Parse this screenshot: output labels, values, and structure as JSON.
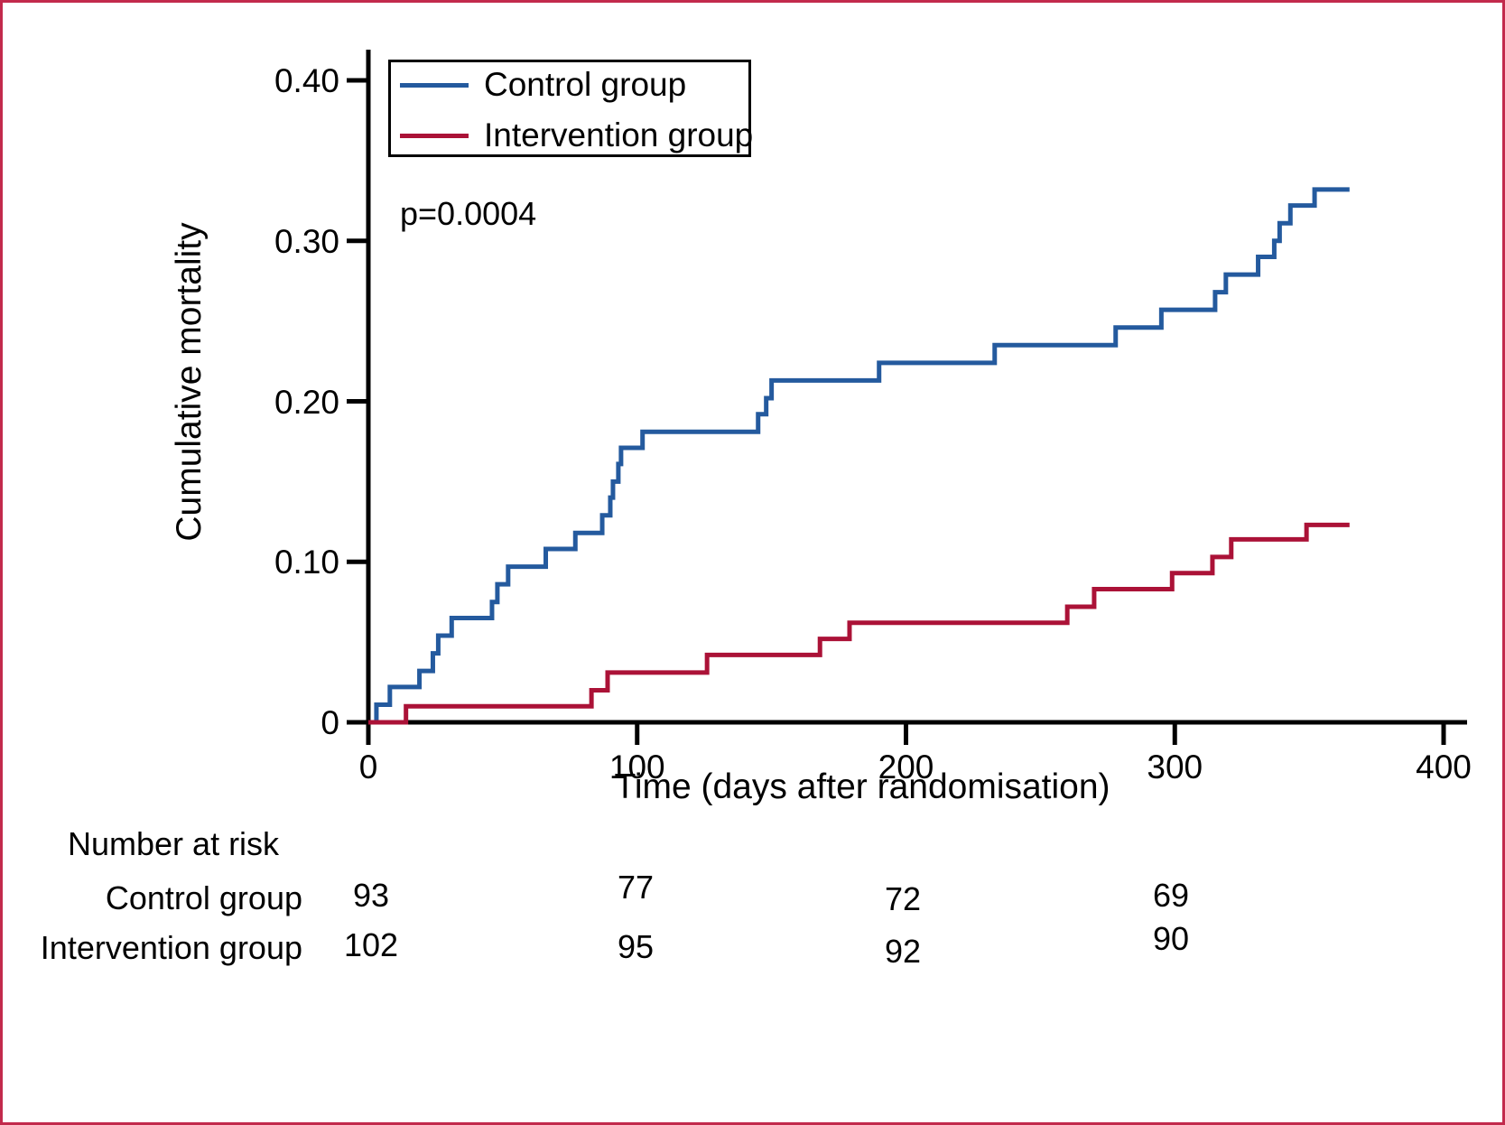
{
  "chart_data": {
    "type": "line",
    "subtype": "kaplan-meier-step-curves",
    "title": "",
    "xlabel": "Time (days after randomisation)",
    "ylabel": "Cumulative mortality",
    "annotation": "p=0.0004",
    "xlim": [
      0,
      408
    ],
    "ylim": [
      0,
      0.42
    ],
    "grid": false,
    "legend_position": "top-left-inside-box",
    "x_ticks": [
      0,
      100,
      200,
      300,
      400
    ],
    "x_tick_labels": [
      "0",
      "100",
      "200",
      "300",
      "400"
    ],
    "y_ticks": [
      0,
      0.1,
      0.2,
      0.3,
      0.4
    ],
    "y_tick_labels": [
      "0",
      "0.10",
      "0.20",
      "0.30",
      "0.40"
    ],
    "axis_color": "#000000",
    "series": [
      {
        "name": "Control group",
        "color": "#245a9e",
        "end_day": 365,
        "points": [
          [
            0,
            0
          ],
          [
            3,
            0.011
          ],
          [
            8,
            0.022
          ],
          [
            19,
            0.032
          ],
          [
            24,
            0.043
          ],
          [
            26,
            0.054
          ],
          [
            31,
            0.065
          ],
          [
            46,
            0.075
          ],
          [
            48,
            0.086
          ],
          [
            52,
            0.097
          ],
          [
            66,
            0.108
          ],
          [
            77,
            0.118
          ],
          [
            87,
            0.129
          ],
          [
            90,
            0.14
          ],
          [
            91,
            0.15
          ],
          [
            93,
            0.161
          ],
          [
            94,
            0.171
          ],
          [
            102,
            0.181
          ],
          [
            145,
            0.192
          ],
          [
            148,
            0.202
          ],
          [
            150,
            0.213
          ],
          [
            190,
            0.224
          ],
          [
            233,
            0.235
          ],
          [
            278,
            0.246
          ],
          [
            295,
            0.257
          ],
          [
            315,
            0.268
          ],
          [
            319,
            0.279
          ],
          [
            331,
            0.29
          ],
          [
            337,
            0.3
          ],
          [
            339,
            0.311
          ],
          [
            343,
            0.322
          ],
          [
            352,
            0.332
          ]
        ]
      },
      {
        "name": "Intervention group",
        "color": "#ab1237",
        "end_day": 365,
        "points": [
          [
            0,
            0
          ],
          [
            14,
            0.01
          ],
          [
            83,
            0.02
          ],
          [
            89,
            0.031
          ],
          [
            126,
            0.042
          ],
          [
            168,
            0.052
          ],
          [
            179,
            0.062
          ],
          [
            260,
            0.072
          ],
          [
            270,
            0.083
          ],
          [
            299,
            0.093
          ],
          [
            314,
            0.103
          ],
          [
            321,
            0.114
          ],
          [
            349,
            0.123
          ]
        ]
      }
    ],
    "number_at_risk": {
      "header": "Number at risk",
      "time_points": [
        0,
        100,
        200,
        300
      ],
      "rows": [
        {
          "label": "Control group",
          "values": [
            "93",
            "77",
            "72",
            "69"
          ]
        },
        {
          "label": "Intervention group",
          "values": [
            "102",
            "95",
            "92",
            "90"
          ]
        }
      ]
    }
  },
  "figure": {
    "border_color": "#c22a4c",
    "background": "#ffffff"
  }
}
